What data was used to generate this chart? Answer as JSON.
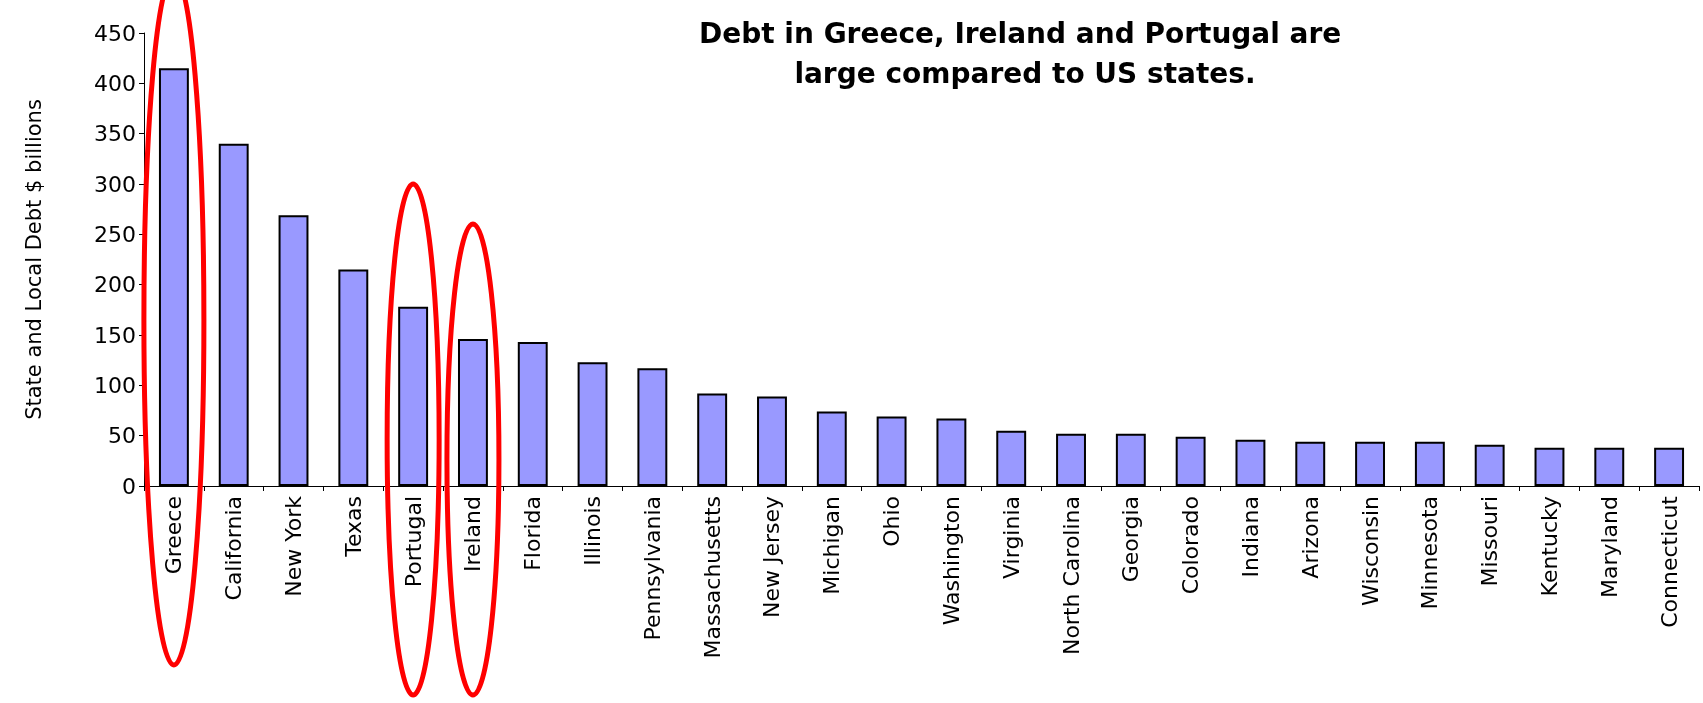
{
  "chart_data": {
    "type": "bar",
    "title": "Debt in Greece, Ireland and Portugal are large compared to US states.",
    "ylabel": "State and Local Debt $ billions",
    "categories": [
      "Greece",
      "California",
      "New York",
      "Texas",
      "Portugal",
      "Ireland",
      "Florida",
      "Illinois",
      "Pennsylvania",
      "Massachusetts",
      "New Jersey",
      "Michigan",
      "Ohio",
      "Washington",
      "Virginia",
      "North Carolina",
      "Georgia",
      "Colorado",
      "Indiana",
      "Arizona",
      "Wisconsin",
      "Minnesota",
      "Missouri",
      "Kentucky",
      "Maryland",
      "Connecticut"
    ],
    "values": [
      415,
      340,
      269,
      215,
      178,
      146,
      143,
      123,
      117,
      92,
      89,
      74,
      69,
      67,
      55,
      52,
      52,
      49,
      46,
      44,
      44,
      44,
      41,
      38,
      38,
      38
    ],
    "color": "#9999ff",
    "ylim": [
      0,
      450
    ],
    "yticks": [
      0,
      50,
      100,
      150,
      200,
      250,
      300,
      350,
      400,
      450
    ]
  }
}
